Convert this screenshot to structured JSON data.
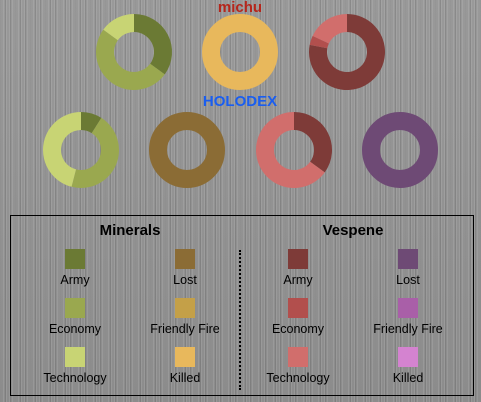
{
  "colors": {
    "minerals": {
      "army": "#6b7a34",
      "economy": "#9aa84f",
      "technology": "#c8d474",
      "lost": "#8b6c35",
      "friendly_fire": "#c4a048",
      "killed": "#e8b85c"
    },
    "vespene": {
      "army": "#7e3b38",
      "economy": "#b24f4d",
      "technology": "#d16e6c",
      "lost": "#6e4a75",
      "friendly_fire": "#a95fa8",
      "killed": "#d483d0"
    }
  },
  "chart_data": {
    "type": "pie",
    "variant": "donut",
    "players": [
      {
        "name": "michu",
        "name_color": "#b5261c",
        "charts": [
          {
            "resource": "minerals",
            "group": "production",
            "slices": [
              {
                "category": "army",
                "value": 35
              },
              {
                "category": "economy",
                "value": 50
              },
              {
                "category": "technology",
                "value": 15
              }
            ]
          },
          {
            "resource": "minerals",
            "group": "losses",
            "slices": [
              {
                "category": "killed",
                "value": 100
              }
            ]
          },
          {
            "resource": "vespene",
            "group": "production",
            "slices": [
              {
                "category": "army",
                "value": 78
              },
              {
                "category": "economy",
                "value": 4
              },
              {
                "category": "technology",
                "value": 18
              }
            ]
          }
        ]
      },
      {
        "name": "HOLODEX",
        "name_color": "#1a5ef0",
        "charts": [
          {
            "resource": "minerals",
            "group": "production",
            "slices": [
              {
                "category": "army",
                "value": 9
              },
              {
                "category": "economy",
                "value": 45
              },
              {
                "category": "technology",
                "value": 46
              }
            ]
          },
          {
            "resource": "minerals",
            "group": "losses",
            "slices": [
              {
                "category": "lost",
                "value": 100
              }
            ]
          },
          {
            "resource": "vespene",
            "group": "production",
            "slices": [
              {
                "category": "army",
                "value": 35
              },
              {
                "category": "technology",
                "value": 65
              }
            ]
          },
          {
            "resource": "vespene",
            "group": "losses",
            "slices": [
              {
                "category": "lost",
                "value": 100
              }
            ]
          }
        ]
      }
    ],
    "legend": {
      "minerals": {
        "heading": "Minerals",
        "items": [
          {
            "key": "army",
            "label": "Army"
          },
          {
            "key": "lost",
            "label": "Lost"
          },
          {
            "key": "economy",
            "label": "Economy"
          },
          {
            "key": "friendly_fire",
            "label": "Friendly Fire"
          },
          {
            "key": "technology",
            "label": "Technology"
          },
          {
            "key": "killed",
            "label": "Killed"
          }
        ]
      },
      "vespene": {
        "heading": "Vespene",
        "items": [
          {
            "key": "army",
            "label": "Army"
          },
          {
            "key": "lost",
            "label": "Lost"
          },
          {
            "key": "economy",
            "label": "Economy"
          },
          {
            "key": "friendly_fire",
            "label": "Friendly Fire"
          },
          {
            "key": "technology",
            "label": "Technology"
          },
          {
            "key": "killed",
            "label": "Killed"
          }
        ]
      }
    }
  }
}
